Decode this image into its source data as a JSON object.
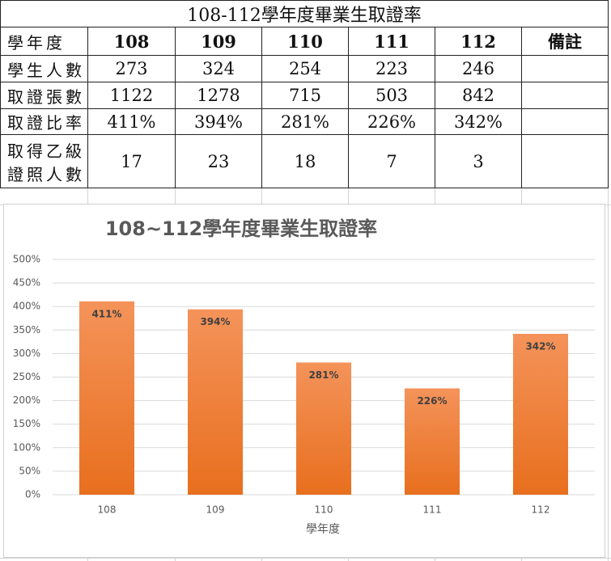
{
  "table": {
    "title": "108-112學年度畢業生取證率",
    "header": [
      "學年度",
      "108",
      "109",
      "110",
      "111",
      "112",
      "備註"
    ],
    "rows": [
      [
        "學生人數",
        "273",
        "324",
        "254",
        "223",
        "246"
      ],
      [
        "取證張數",
        "1122",
        "1278",
        "715",
        "503",
        "842"
      ],
      [
        "取證比率",
        "411%",
        "394%",
        "281%",
        "226%",
        "342%"
      ],
      [
        "取得乙級證照人數",
        "17",
        "23",
        "18",
        "7",
        "3"
      ]
    ]
  },
  "chart_data": {
    "type": "bar",
    "title": "108~112學年度畢業生取證率",
    "x_label": "學年度",
    "categories": [
      "108",
      "109",
      "110",
      "111",
      "112"
    ],
    "values": [
      411,
      394,
      281,
      226,
      342
    ],
    "value_labels": [
      "411%",
      "394%",
      "281%",
      "226%",
      "342%"
    ],
    "color": "#ed7d31",
    "grid": true,
    "ylim": [
      0,
      500
    ],
    "yticks": [
      {
        "value": 0,
        "label": "0%"
      },
      {
        "value": 50,
        "label": "50%"
      },
      {
        "value": 100,
        "label": "100%"
      },
      {
        "value": 150,
        "label": "150%"
      },
      {
        "value": 200,
        "label": "200%"
      },
      {
        "value": 250,
        "label": "250%"
      },
      {
        "value": 300,
        "label": "300%"
      },
      {
        "value": 350,
        "label": "350%"
      },
      {
        "value": 400,
        "label": "400%"
      },
      {
        "value": 450,
        "label": "450%"
      },
      {
        "value": 500,
        "label": "500%"
      }
    ]
  }
}
